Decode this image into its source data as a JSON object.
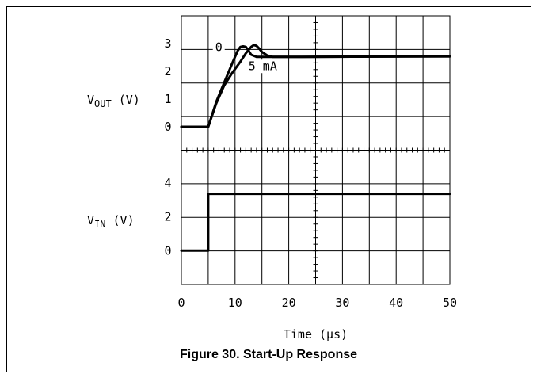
{
  "figure": {
    "caption": "Figure 30. Start-Up Response"
  },
  "chart_data": {
    "type": "line",
    "xlabel": "Time (μs)",
    "xlim": [
      0,
      50
    ],
    "x_ticks": [
      "0",
      "10",
      "20",
      "30",
      "40",
      "50"
    ],
    "panels": [
      {
        "id": "vout",
        "ylabel_main": "V",
        "ylabel_sub": "OUT",
        "ylabel_unit": "(V)",
        "ylim": [
          -0.8,
          4
        ],
        "y_ticks": [
          "0",
          "1",
          "2",
          "3"
        ],
        "series": [
          {
            "name": "0",
            "x": [
              0,
              5,
              6.5,
              8,
              9.5,
              10.5,
              11,
              11.5,
              12,
              12.5,
              13,
              14,
              15,
              16,
              17,
              20,
              50
            ],
            "y": [
              0,
              0,
              0.9,
              1.6,
              2.3,
              2.75,
              2.88,
              2.9,
              2.88,
              2.75,
              2.6,
              2.52,
              2.52,
              2.52,
              2.52,
              2.52,
              2.54
            ]
          },
          {
            "name": "5 mA",
            "x": [
              0,
              5,
              6.5,
              8,
              9.5,
              11,
              12,
              13,
              13.5,
              14,
              14.5,
              15,
              16,
              17,
              18,
              20,
              50
            ],
            "y": [
              0,
              0,
              0.85,
              1.5,
              1.95,
              2.35,
              2.65,
              2.88,
              2.95,
              2.92,
              2.82,
              2.7,
              2.57,
              2.52,
              2.52,
              2.52,
              2.54
            ]
          }
        ]
      },
      {
        "id": "vin",
        "ylabel_main": "V",
        "ylabel_sub": "IN",
        "ylabel_unit": "(V)",
        "ylim": [
          -2,
          6
        ],
        "y_ticks": [
          "0",
          "2",
          "4"
        ],
        "series": [
          {
            "x": [
              0,
              5,
              5,
              50
            ],
            "y": [
              0,
              0,
              3.35,
              3.35
            ]
          }
        ]
      }
    ],
    "annotations": [
      {
        "text": "0",
        "x": 6.3,
        "y": 2.73
      },
      {
        "text": "5 mA",
        "x": 12.5,
        "y": 2.05
      }
    ],
    "grid": true,
    "colors": {
      "trace": "#000000",
      "grid": "#000000"
    }
  }
}
